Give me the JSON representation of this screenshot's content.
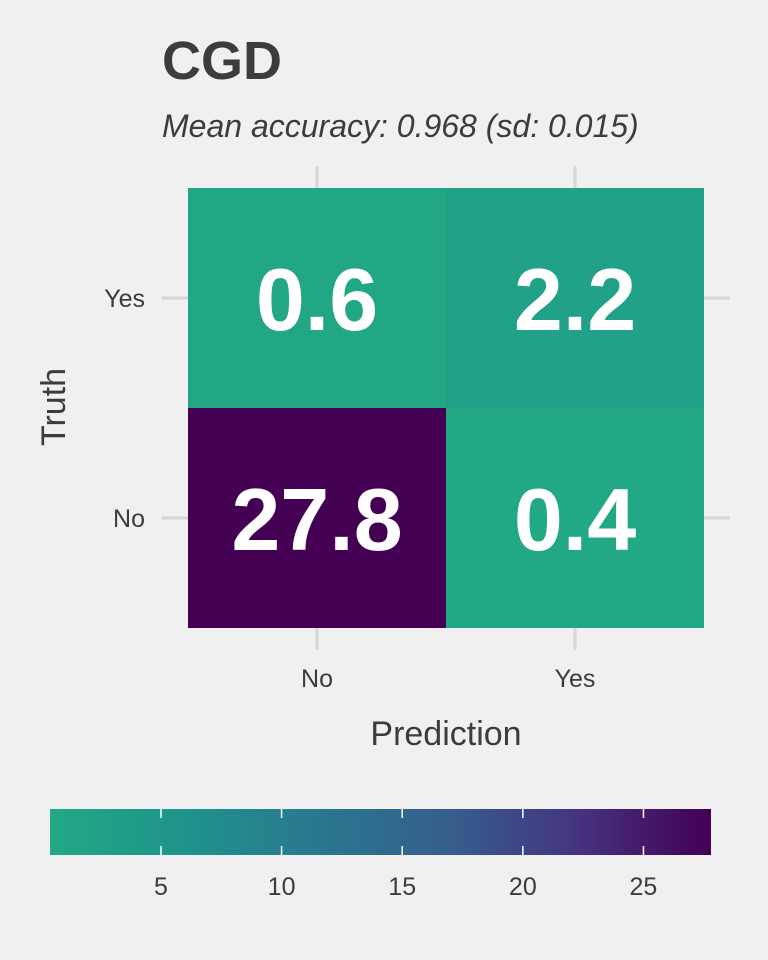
{
  "chart_data": {
    "type": "heatmap",
    "title": "CGD",
    "subtitle": "Mean accuracy: 0.968 (sd: 0.015)",
    "xlabel": "Prediction",
    "ylabel": "Truth",
    "x_categories": [
      "No",
      "Yes"
    ],
    "y_categories": [
      "No",
      "Yes"
    ],
    "cells": [
      {
        "x": "No",
        "y": "Yes",
        "value": 0.6,
        "label": "0.6"
      },
      {
        "x": "Yes",
        "y": "Yes",
        "value": 2.2,
        "label": "2.2"
      },
      {
        "x": "No",
        "y": "No",
        "value": 27.8,
        "label": "27.8"
      },
      {
        "x": "Yes",
        "y": "No",
        "value": 0.4,
        "label": "0.4"
      }
    ],
    "colorbar": {
      "ticks": [
        5,
        10,
        15,
        20,
        25
      ],
      "tick_labels": [
        "5",
        "10",
        "15",
        "20",
        "25"
      ],
      "range": [
        0.4,
        27.8
      ],
      "low_color": "#22a884",
      "high_color": "#440154"
    },
    "legend_position": "bottom",
    "background_color": "#f0f0f0",
    "grid": true
  }
}
